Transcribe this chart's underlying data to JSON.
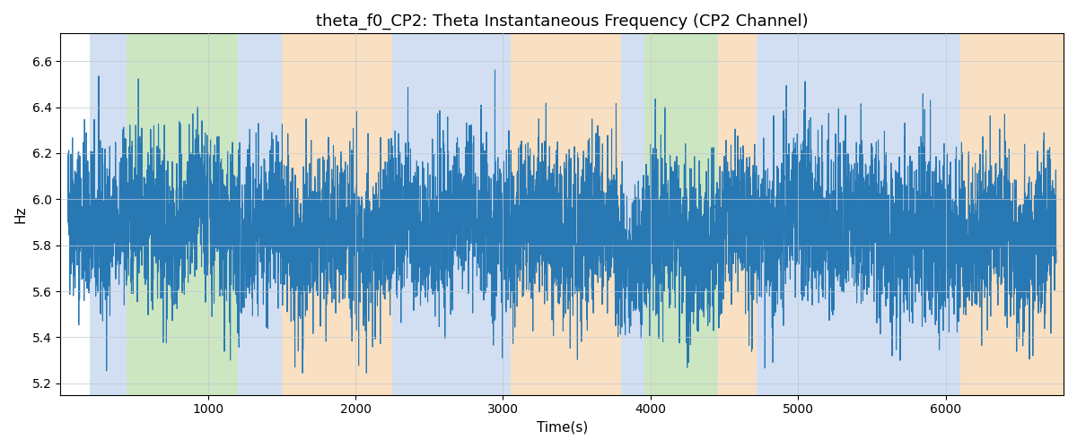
{
  "title": "theta_f0_CP2: Theta Instantaneous Frequency (CP2 Channel)",
  "xlabel": "Time(s)",
  "ylabel": "Hz",
  "ylim": [
    5.15,
    6.72
  ],
  "xlim": [
    0,
    6800
  ],
  "line_color": "#2878b4",
  "line_width": 0.8,
  "bg_color": "#ffffff",
  "grid_color": "#c0c8d0",
  "regions": [
    {
      "start": 200,
      "end": 450,
      "color": "#aec6e8",
      "alpha": 0.55
    },
    {
      "start": 450,
      "end": 1200,
      "color": "#90c878",
      "alpha": 0.45
    },
    {
      "start": 1200,
      "end": 1500,
      "color": "#aec6e8",
      "alpha": 0.55
    },
    {
      "start": 1500,
      "end": 2250,
      "color": "#f5c890",
      "alpha": 0.55
    },
    {
      "start": 2250,
      "end": 3050,
      "color": "#aec6e8",
      "alpha": 0.55
    },
    {
      "start": 3050,
      "end": 3800,
      "color": "#f5c890",
      "alpha": 0.55
    },
    {
      "start": 3800,
      "end": 3960,
      "color": "#aec6e8",
      "alpha": 0.55
    },
    {
      "start": 3960,
      "end": 4460,
      "color": "#90c878",
      "alpha": 0.45
    },
    {
      "start": 4460,
      "end": 4720,
      "color": "#f5c890",
      "alpha": 0.55
    },
    {
      "start": 4720,
      "end": 6100,
      "color": "#aec6e8",
      "alpha": 0.55
    },
    {
      "start": 6100,
      "end": 6800,
      "color": "#f5c890",
      "alpha": 0.55
    }
  ],
  "seed": 42,
  "n_points": 6700,
  "t_start": 50,
  "t_end": 6750,
  "base_freq": 5.87,
  "freq_std": 0.18,
  "slow_amp": 0.04,
  "slow_periods": 3,
  "med_amp": 0.06,
  "med_periods": 15
}
